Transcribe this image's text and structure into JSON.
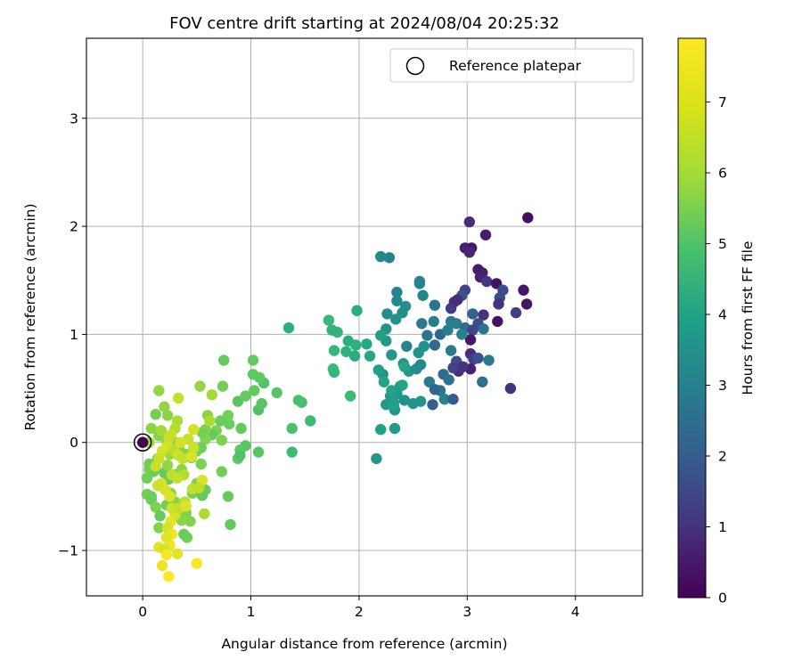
{
  "chart_data": {
    "type": "scatter",
    "title": "FOV centre drift starting at 2024/08/04 20:25:32",
    "xlabel": "Angular distance from reference (arcmin)",
    "ylabel": "Rotation from reference (arcmin)",
    "xlim": [
      -0.52,
      4.62
    ],
    "ylim": [
      -1.42,
      3.74
    ],
    "xticks": [
      "0",
      "1",
      "2",
      "3",
      "4"
    ],
    "yticks": [
      "−1",
      "0",
      "1",
      "2",
      "3"
    ],
    "grid": true,
    "legend": {
      "placement": "top-right",
      "entries": [
        "Reference platepar"
      ]
    },
    "colorbar": {
      "label": "Hours from first FF file",
      "range": [
        0,
        7.9
      ],
      "ticks": [
        "0",
        "1",
        "2",
        "3",
        "4",
        "5",
        "6",
        "7"
      ],
      "colormap": "viridis"
    },
    "reference_point": {
      "x": 0,
      "y": 0
    },
    "series": [
      {
        "points": [
          [
            3.56,
            2.08,
            0.3
          ],
          [
            3.02,
            2.04,
            1.0
          ],
          [
            3.17,
            1.92,
            0.6
          ],
          [
            2.98,
            1.8,
            0.7
          ],
          [
            3.04,
            1.8,
            0.5
          ],
          [
            3.02,
            1.76,
            0.8
          ],
          [
            3.1,
            1.6,
            0.6
          ],
          [
            3.14,
            1.57,
            0.6
          ],
          [
            3.12,
            1.53,
            0.7
          ],
          [
            3.18,
            1.49,
            1.3
          ],
          [
            3.27,
            1.47,
            0.4
          ],
          [
            3.33,
            1.41,
            1.9
          ],
          [
            3.52,
            1.41,
            0.5
          ],
          [
            2.98,
            1.41,
            1.6
          ],
          [
            2.95,
            1.36,
            2.0
          ],
          [
            3.3,
            1.34,
            1.8
          ],
          [
            3.29,
            1.28,
            1.1
          ],
          [
            3.55,
            1.28,
            0.5
          ],
          [
            3.45,
            1.2,
            1.5
          ],
          [
            2.91,
            1.32,
            1.1
          ],
          [
            2.88,
            1.3,
            1.0
          ],
          [
            2.85,
            1.24,
            1.4
          ],
          [
            3.05,
            1.19,
            2.5
          ],
          [
            3.15,
            1.18,
            1.2
          ],
          [
            3.28,
            1.12,
            0.4
          ],
          [
            3.1,
            1.1,
            1.8
          ],
          [
            3.15,
            1.05,
            3.0
          ],
          [
            2.9,
            1.1,
            3.4
          ],
          [
            2.98,
            1.06,
            2.7
          ],
          [
            3.05,
            1.04,
            1.7
          ],
          [
            3.03,
            0.95,
            0.5
          ],
          [
            2.95,
            1.0,
            3.5
          ],
          [
            2.75,
            1.0,
            2.6
          ],
          [
            2.7,
            0.9,
            2.7
          ],
          [
            2.85,
            0.85,
            3.2
          ],
          [
            2.9,
            0.75,
            1.8
          ],
          [
            3.03,
            0.82,
            1.0
          ],
          [
            3.06,
            0.77,
            1.5
          ],
          [
            3.1,
            0.78,
            2.0
          ],
          [
            3.2,
            0.76,
            3.2
          ],
          [
            3.03,
            0.68,
            0.7
          ],
          [
            2.92,
            0.66,
            1.1
          ],
          [
            2.96,
            0.7,
            1.2
          ],
          [
            2.87,
            0.69,
            1.6
          ],
          [
            2.78,
            0.63,
            2.8
          ],
          [
            2.83,
            0.58,
            3.0
          ],
          [
            2.65,
            0.56,
            3.2
          ],
          [
            2.75,
            0.48,
            3.0
          ],
          [
            2.7,
            0.49,
            2.6
          ],
          [
            2.79,
            0.4,
            3.5
          ],
          [
            2.87,
            0.4,
            2.3
          ],
          [
            2.68,
            0.35,
            2.4
          ],
          [
            3.14,
            0.56,
            2.9
          ],
          [
            3.4,
            0.5,
            1.2
          ],
          [
            2.2,
            1.72,
            3.8
          ],
          [
            2.28,
            1.71,
            3.6
          ],
          [
            2.56,
            1.49,
            3.5
          ],
          [
            2.56,
            1.47,
            3.6
          ],
          [
            2.35,
            1.39,
            3.5
          ],
          [
            2.35,
            1.31,
            3.7
          ],
          [
            2.59,
            1.36,
            3.6
          ],
          [
            2.7,
            1.27,
            3.0
          ],
          [
            2.85,
            1.12,
            3.3
          ],
          [
            2.43,
            1.26,
            3.9
          ],
          [
            2.4,
            1.2,
            3.9
          ],
          [
            2.26,
            1.19,
            3.9
          ],
          [
            2.34,
            1.14,
            4.0
          ],
          [
            2.58,
            1.1,
            3.2
          ],
          [
            2.69,
            1.12,
            3.4
          ],
          [
            2.82,
            1.04,
            3.4
          ],
          [
            2.63,
            0.99,
            3.1
          ],
          [
            2.6,
            0.89,
            4.0
          ],
          [
            2.44,
            0.89,
            3.6
          ],
          [
            2.25,
            1.05,
            4.0
          ],
          [
            2.25,
            0.94,
            4.3
          ],
          [
            2.2,
            0.99,
            4.5
          ],
          [
            2.3,
            0.81,
            4.2
          ],
          [
            2.41,
            0.73,
            4.1
          ],
          [
            2.46,
            0.66,
            4.1
          ],
          [
            2.38,
            0.52,
            4.4
          ],
          [
            2.4,
            0.53,
            4.6
          ],
          [
            2.35,
            0.45,
            4.3
          ],
          [
            2.29,
            0.43,
            4.2
          ],
          [
            2.32,
            0.37,
            4.4
          ],
          [
            2.25,
            0.35,
            4.3
          ],
          [
            2.33,
            0.3,
            4.0
          ],
          [
            2.32,
            0.34,
            4.5
          ],
          [
            2.42,
            0.39,
            4.0
          ],
          [
            2.5,
            0.36,
            4.1
          ],
          [
            2.57,
            0.38,
            4.1
          ],
          [
            2.53,
            0.68,
            3.9
          ],
          [
            2.57,
            0.72,
            3.7
          ],
          [
            2.42,
            0.7,
            4.6
          ],
          [
            2.22,
            0.63,
            4.1
          ],
          [
            2.18,
            0.67,
            4.4
          ],
          [
            2.23,
            0.56,
            4.6
          ],
          [
            2.3,
            0.48,
            4.6
          ],
          [
            2.55,
            0.83,
            4.0
          ],
          [
            2.2,
            0.12,
            4.5
          ],
          [
            2.33,
            0.13,
            4.3
          ],
          [
            2.16,
            -0.15,
            4.2
          ],
          [
            2.1,
            0.8,
            4.7
          ],
          [
            2.07,
            0.91,
            4.7
          ],
          [
            1.98,
            1.22,
            4.9
          ],
          [
            1.96,
            0.8,
            4.9
          ],
          [
            1.97,
            0.9,
            5.0
          ],
          [
            1.9,
            0.94,
            4.9
          ],
          [
            1.88,
            0.84,
            5.1
          ],
          [
            1.8,
            1.02,
            5.2
          ],
          [
            1.75,
            1.04,
            5.1
          ],
          [
            1.72,
            1.13,
            5.3
          ],
          [
            1.77,
            0.85,
            5.3
          ],
          [
            1.76,
            0.68,
            5.4
          ],
          [
            1.77,
            0.65,
            5.3
          ],
          [
            1.92,
            0.43,
            5.4
          ],
          [
            1.35,
            1.06,
            5.0
          ],
          [
            1.55,
            0.2,
            5.4
          ],
          [
            1.47,
            0.37,
            5.5
          ],
          [
            1.44,
            0.39,
            5.6
          ],
          [
            1.38,
            0.13,
            5.6
          ],
          [
            1.38,
            -0.09,
            5.4
          ],
          [
            1.24,
            0.46,
            5.8
          ],
          [
            1.12,
            0.55,
            5.7
          ],
          [
            1.08,
            0.6,
            5.9
          ],
          [
            1.02,
            0.63,
            5.9
          ],
          [
            1.02,
            0.76,
            6.0
          ],
          [
            1.07,
            0.3,
            5.7
          ],
          [
            1.03,
            0.48,
            6.0
          ],
          [
            1.1,
            0.36,
            5.8
          ],
          [
            0.88,
            0.38,
            5.8
          ],
          [
            0.95,
            0.43,
            6.0
          ],
          [
            0.95,
            -0.03,
            5.8
          ],
          [
            0.9,
            -0.07,
            5.9
          ],
          [
            0.91,
            0.13,
            6.0
          ],
          [
            0.88,
            -0.15,
            5.9
          ],
          [
            0.9,
            -0.12,
            5.7
          ],
          [
            1.07,
            -0.09,
            5.8
          ],
          [
            0.75,
            0.76,
            6.0
          ],
          [
            0.74,
            0.52,
            6.2
          ],
          [
            0.8,
            0.17,
            6.1
          ],
          [
            0.79,
            0.25,
            6.2
          ],
          [
            0.72,
            0.2,
            6.1
          ],
          [
            0.73,
            0.02,
            6.3
          ],
          [
            0.68,
            0.11,
            6.3
          ],
          [
            0.64,
            0.07,
            6.0
          ],
          [
            0.6,
            0.25,
            6.5
          ],
          [
            0.58,
            0.12,
            6.4
          ],
          [
            0.58,
            0.03,
            6.4
          ],
          [
            0.55,
            0.09,
            6.2
          ],
          [
            0.54,
            -0.05,
            6.1
          ],
          [
            0.54,
            -0.2,
            6.3
          ],
          [
            0.5,
            -0.08,
            6.2
          ],
          [
            0.45,
            -0.14,
            6.1
          ],
          [
            0.4,
            -0.11,
            6.4
          ],
          [
            0.73,
            -0.27,
            6.2
          ],
          [
            0.81,
            -0.76,
            6.0
          ],
          [
            0.79,
            -0.5,
            6.0
          ],
          [
            0.58,
            -0.44,
            6.1
          ],
          [
            0.55,
            -0.49,
            6.0
          ],
          [
            0.5,
            -0.38,
            6.3
          ],
          [
            0.46,
            -0.47,
            6.2
          ],
          [
            0.41,
            -0.88,
            6.2
          ],
          [
            0.38,
            -0.85,
            6.1
          ],
          [
            0.44,
            -0.73,
            6.4
          ],
          [
            0.4,
            -0.65,
            6.3
          ],
          [
            0.36,
            -0.72,
            6.5
          ],
          [
            0.3,
            -0.55,
            6.4
          ],
          [
            0.24,
            -0.34,
            6.1
          ],
          [
            0.2,
            -0.28,
            6.0
          ],
          [
            0.14,
            -0.15,
            6.0
          ],
          [
            0.1,
            -0.27,
            6.1
          ],
          [
            0.06,
            -0.25,
            6.2
          ],
          [
            0.06,
            -0.2,
            6.1
          ],
          [
            0.04,
            -0.33,
            6.2
          ],
          [
            0.08,
            -0.5,
            6.0
          ],
          [
            0.04,
            -0.48,
            6.2
          ],
          [
            0.08,
            -0.53,
            6.1
          ],
          [
            0.12,
            -0.6,
            6.3
          ],
          [
            0.16,
            -0.68,
            6.0
          ],
          [
            0.15,
            -0.79,
            6.4
          ],
          [
            0.22,
            -0.58,
            6.2
          ],
          [
            0.26,
            -0.47,
            6.5
          ],
          [
            0.23,
            -0.21,
            6.6
          ],
          [
            0.3,
            -0.3,
            6.4
          ],
          [
            0.36,
            -0.25,
            6.5
          ],
          [
            0.34,
            -0.07,
            6.4
          ],
          [
            0.25,
            -0.11,
            6.7
          ],
          [
            0.3,
            0.0,
            6.5
          ],
          [
            0.22,
            0.02,
            6.6
          ],
          [
            0.15,
            0.06,
            6.4
          ],
          [
            0.08,
            0.13,
            6.5
          ],
          [
            0.12,
            0.26,
            6.2
          ],
          [
            0.2,
            0.33,
            6.6
          ],
          [
            0.23,
            0.25,
            6.5
          ],
          [
            0.15,
            0.48,
            6.6
          ],
          [
            0.17,
            0.11,
            6.8
          ],
          [
            0.06,
            0.0,
            6.8
          ],
          [
            0.64,
            0.44,
            6.8
          ],
          [
            0.62,
            0.2,
            6.9
          ],
          [
            0.53,
            0.52,
            6.6
          ],
          [
            0.33,
            0.41,
            7.2
          ],
          [
            0.32,
            0.2,
            6.9
          ],
          [
            0.3,
            0.13,
            7.0
          ],
          [
            0.26,
            0.07,
            7.3
          ],
          [
            0.24,
            0.04,
            7.2
          ],
          [
            0.23,
            -0.03,
            7.4
          ],
          [
            0.29,
            -0.07,
            7.1
          ],
          [
            0.33,
            -0.12,
            7.3
          ],
          [
            0.37,
            -0.15,
            7.2
          ],
          [
            0.45,
            -0.13,
            7.5
          ],
          [
            0.47,
            -0.05,
            7.3
          ],
          [
            0.47,
            0.12,
            7.4
          ],
          [
            0.42,
            0.03,
            7.2
          ],
          [
            0.35,
            0.0,
            7.4
          ],
          [
            0.18,
            -0.08,
            7.4
          ],
          [
            0.15,
            -0.15,
            7.3
          ],
          [
            0.12,
            -0.22,
            7.2
          ],
          [
            0.17,
            -0.38,
            7.5
          ],
          [
            0.14,
            -0.4,
            7.3
          ],
          [
            0.21,
            -0.44,
            7.4
          ],
          [
            0.25,
            -0.5,
            7.5
          ],
          [
            0.27,
            -0.61,
            7.3
          ],
          [
            0.3,
            -0.67,
            7.4
          ],
          [
            0.34,
            -0.61,
            7.2
          ],
          [
            0.39,
            -0.55,
            7.1
          ],
          [
            0.4,
            -0.59,
            7.5
          ],
          [
            0.26,
            -0.73,
            7.6
          ],
          [
            0.23,
            -0.79,
            7.4
          ],
          [
            0.27,
            -0.85,
            7.7
          ],
          [
            0.22,
            -0.88,
            7.5
          ],
          [
            0.25,
            -0.95,
            7.7
          ],
          [
            0.15,
            -0.97,
            7.6
          ],
          [
            0.2,
            -0.99,
            7.4
          ],
          [
            0.32,
            -1.03,
            7.6
          ],
          [
            0.22,
            -1.04,
            7.8
          ],
          [
            0.18,
            -1.14,
            7.7
          ],
          [
            0.24,
            -1.24,
            7.9
          ],
          [
            0.5,
            -1.12,
            7.8
          ],
          [
            0.55,
            -0.35,
            7.5
          ],
          [
            0.46,
            -0.43,
            7.2
          ],
          [
            0.52,
            -0.42,
            7.1
          ],
          [
            0.57,
            -0.66,
            6.9
          ],
          [
            0.38,
            -0.3,
            7.0
          ],
          [
            0.27,
            -0.3,
            7.1
          ],
          [
            0.32,
            -0.33,
            7.2
          ]
        ]
      }
    ]
  }
}
